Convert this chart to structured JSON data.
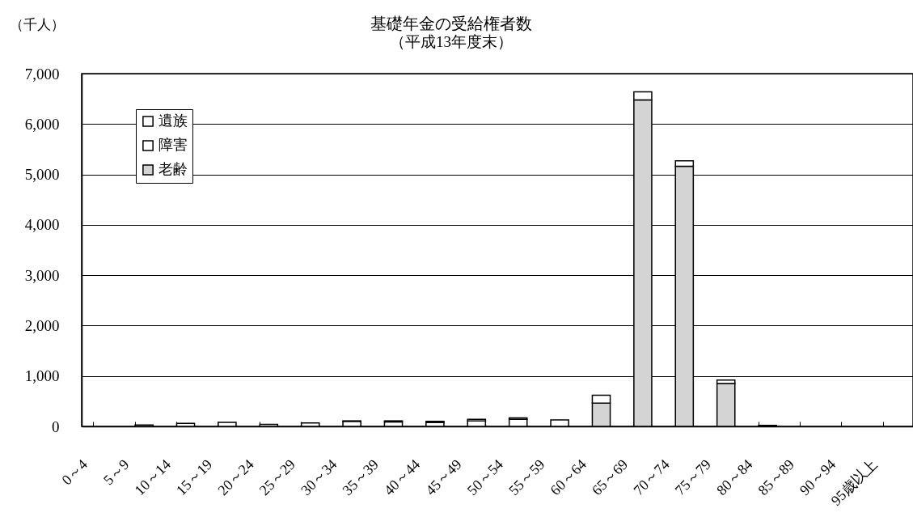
{
  "chart_data": {
    "type": "bar",
    "title": "基礎年金の受給権者数",
    "subtitle": "（平成13年度末）",
    "ylabel": "（千人）",
    "categories": [
      "0～4",
      "5～9",
      "10～14",
      "15～19",
      "20～24",
      "25～29",
      "30～34",
      "35～39",
      "40～44",
      "45～49",
      "50～54",
      "55～59",
      "60～64",
      "65～69",
      "70～74",
      "75～79",
      "80～84",
      "85～89",
      "90～94",
      "95歳以上"
    ],
    "series": [
      {
        "name": "老齢",
        "color": "#d4d4d4",
        "values": [
          null,
          null,
          null,
          null,
          null,
          null,
          null,
          null,
          null,
          null,
          null,
          null,
          460,
          6480,
          5160,
          850,
          20,
          null,
          null,
          null
        ]
      },
      {
        "name": "障害",
        "color": "#ffffff",
        "values": [
          null,
          null,
          null,
          null,
          40,
          70,
          100,
          90,
          80,
          110,
          140,
          130,
          160,
          160,
          110,
          70,
          null,
          null,
          null,
          null
        ]
      },
      {
        "name": "遺族",
        "color": "#ffffff",
        "values": [
          null,
          30,
          60,
          80,
          null,
          null,
          10,
          20,
          20,
          30,
          30,
          null,
          null,
          null,
          null,
          null,
          null,
          null,
          null,
          null
        ]
      }
    ],
    "stacked": true,
    "ylim": [
      0,
      7000
    ],
    "yticks": [
      0,
      {
        "value": 1000,
        "label": "1,000"
      },
      {
        "value": 2000,
        "label": "2,000"
      },
      {
        "value": 3000,
        "label": "3,000"
      },
      {
        "value": 4000,
        "label": "4,000"
      },
      {
        "value": 5000,
        "label": "5,000"
      },
      {
        "value": 6000,
        "label": "6,000"
      },
      {
        "value": 7000,
        "label": "7,000"
      }
    ],
    "grid": "y",
    "legend": "top left"
  }
}
